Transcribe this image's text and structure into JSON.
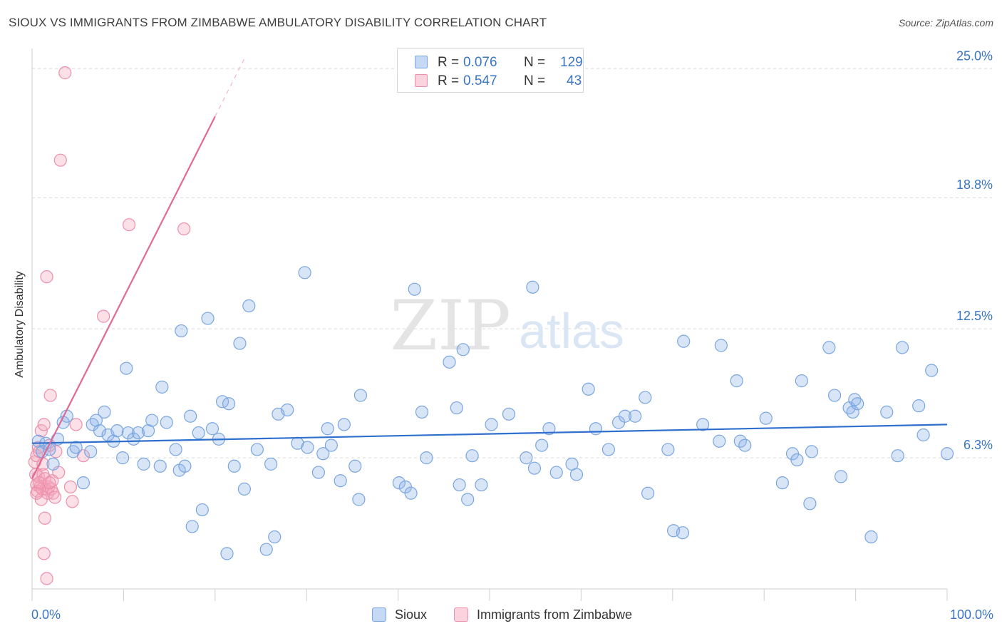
{
  "header": {
    "title": "SIOUX VS IMMIGRANTS FROM ZIMBABWE AMBULATORY DISABILITY CORRELATION CHART",
    "source": "Source: ZipAtlas.com"
  },
  "watermark": {
    "zip": "ZIP",
    "atlas": "atlas"
  },
  "legend": {
    "rows": [
      {
        "r_label": "R =",
        "r_value": "0.076",
        "n_label": "N =",
        "n_value": "129",
        "color": "#8fb5e8"
      },
      {
        "r_label": "R =",
        "r_value": "0.547",
        "n_label": "N =",
        "n_value": "43",
        "color": "#f4a7bd"
      }
    ]
  },
  "bottom_legend": [
    {
      "label": "Sioux",
      "color": "#8fb5e8"
    },
    {
      "label": "Immigrants from Zimbabwe",
      "color": "#f4a7bd"
    }
  ],
  "colors": {
    "blue_fill": "rgba(143,181,232,0.35)",
    "blue_stroke": "#7aa6e0",
    "blue_line": "#2f6fce",
    "pink_fill": "rgba(244,167,189,0.35)",
    "pink_stroke": "#ee8fab",
    "pink_line": "#e06a94",
    "axis_text": "#3a76c4",
    "grid": "#d9d9d9"
  },
  "chart_data": {
    "type": "scatter",
    "title": "SIOUX VS IMMIGRANTS FROM ZIMBABWE AMBULATORY DISABILITY CORRELATION CHART",
    "xlabel": "",
    "ylabel": "Ambulatory Disability",
    "xlim": [
      0,
      100
    ],
    "ylim": [
      0,
      25.9
    ],
    "x_tick_labels": [
      "0.0%",
      "100.0%"
    ],
    "y_ticks": [
      6.3,
      12.5,
      18.8,
      25.0
    ],
    "y_tick_labels": [
      "6.3%",
      "12.5%",
      "18.8%",
      "25.0%"
    ],
    "grid": "horizontal dashed",
    "legend_position": "top-center",
    "series": [
      {
        "name": "Sioux",
        "r": 0.076,
        "n": 129,
        "trend": {
          "x": [
            0,
            100
          ],
          "y": [
            7.0,
            7.9
          ]
        },
        "points": [
          [
            0.7,
            7.1
          ],
          [
            1.1,
            6.6
          ],
          [
            1.5,
            7.0
          ],
          [
            2.3,
            6.0
          ],
          [
            2.8,
            7.2
          ],
          [
            3.4,
            8.0
          ],
          [
            3.8,
            8.3
          ],
          [
            4.5,
            6.6
          ],
          [
            4.8,
            6.8
          ],
          [
            5.6,
            5.1
          ],
          [
            6.4,
            6.6
          ],
          [
            6.6,
            7.9
          ],
          [
            7.0,
            8.1
          ],
          [
            7.4,
            7.6
          ],
          [
            7.9,
            8.5
          ],
          [
            8.3,
            7.4
          ],
          [
            8.9,
            7.1
          ],
          [
            9.3,
            7.6
          ],
          [
            9.9,
            6.3
          ],
          [
            10.3,
            10.6
          ],
          [
            10.5,
            7.5
          ],
          [
            11.1,
            7.2
          ],
          [
            11.6,
            7.5
          ],
          [
            12.2,
            6.0
          ],
          [
            12.7,
            7.6
          ],
          [
            13.1,
            8.1
          ],
          [
            14.0,
            5.9
          ],
          [
            14.2,
            9.7
          ],
          [
            14.7,
            8.0
          ],
          [
            15.7,
            6.7
          ],
          [
            16.1,
            5.7
          ],
          [
            16.3,
            12.4
          ],
          [
            16.7,
            5.9
          ],
          [
            17.3,
            8.3
          ],
          [
            17.5,
            3.0
          ],
          [
            18.2,
            7.5
          ],
          [
            18.6,
            3.8
          ],
          [
            19.2,
            13.0
          ],
          [
            19.7,
            7.7
          ],
          [
            20.4,
            7.2
          ],
          [
            20.8,
            9.0
          ],
          [
            21.3,
            1.7
          ],
          [
            21.5,
            8.9
          ],
          [
            22.1,
            5.9
          ],
          [
            22.7,
            11.8
          ],
          [
            23.2,
            4.8
          ],
          [
            23.7,
            13.6
          ],
          [
            24.6,
            6.7
          ],
          [
            25.6,
            1.9
          ],
          [
            26.1,
            6.0
          ],
          [
            26.5,
            2.5
          ],
          [
            26.9,
            8.4
          ],
          [
            27.9,
            8.6
          ],
          [
            29.0,
            7.0
          ],
          [
            29.8,
            15.2
          ],
          [
            30.1,
            6.8
          ],
          [
            31.3,
            5.6
          ],
          [
            31.8,
            6.5
          ],
          [
            32.3,
            7.7
          ],
          [
            32.7,
            6.9
          ],
          [
            33.7,
            5.2
          ],
          [
            34.1,
            7.9
          ],
          [
            35.3,
            5.9
          ],
          [
            35.7,
            4.3
          ],
          [
            35.9,
            9.3
          ],
          [
            40.1,
            5.1
          ],
          [
            40.8,
            4.9
          ],
          [
            41.4,
            4.6
          ],
          [
            41.8,
            14.4
          ],
          [
            42.6,
            8.5
          ],
          [
            43.1,
            6.3
          ],
          [
            45.6,
            10.9
          ],
          [
            46.4,
            8.7
          ],
          [
            46.7,
            5.0
          ],
          [
            47.1,
            11.5
          ],
          [
            47.6,
            4.3
          ],
          [
            48.1,
            6.4
          ],
          [
            49.1,
            5.0
          ],
          [
            50.2,
            7.9
          ],
          [
            52.1,
            8.4
          ],
          [
            54.0,
            6.3
          ],
          [
            54.7,
            14.5
          ],
          [
            54.9,
            5.8
          ],
          [
            55.7,
            6.9
          ],
          [
            56.5,
            7.7
          ],
          [
            57.3,
            5.6
          ],
          [
            59.0,
            6.0
          ],
          [
            59.5,
            5.5
          ],
          [
            60.8,
            9.6
          ],
          [
            61.6,
            7.7
          ],
          [
            63.0,
            6.7
          ],
          [
            64.1,
            8.0
          ],
          [
            64.8,
            8.3
          ],
          [
            65.9,
            8.3
          ],
          [
            67.0,
            9.2
          ],
          [
            67.3,
            4.6
          ],
          [
            69.5,
            6.7
          ],
          [
            70.1,
            2.8
          ],
          [
            71.1,
            2.7
          ],
          [
            71.2,
            11.9
          ],
          [
            73.3,
            7.9
          ],
          [
            75.1,
            7.1
          ],
          [
            75.3,
            11.7
          ],
          [
            77.0,
            10.0
          ],
          [
            77.4,
            7.1
          ],
          [
            77.9,
            6.9
          ],
          [
            80.2,
            8.2
          ],
          [
            82.0,
            5.1
          ],
          [
            83.1,
            6.5
          ],
          [
            83.6,
            6.2
          ],
          [
            84.1,
            10.0
          ],
          [
            85.0,
            4.1
          ],
          [
            85.2,
            6.6
          ],
          [
            87.1,
            11.6
          ],
          [
            87.7,
            9.3
          ],
          [
            88.4,
            5.4
          ],
          [
            89.3,
            8.7
          ],
          [
            89.7,
            8.5
          ],
          [
            89.9,
            9.1
          ],
          [
            90.2,
            8.9
          ],
          [
            91.7,
            2.5
          ],
          [
            93.4,
            8.5
          ],
          [
            94.6,
            6.4
          ],
          [
            95.1,
            11.6
          ],
          [
            96.9,
            8.8
          ],
          [
            97.4,
            7.4
          ],
          [
            98.3,
            10.5
          ],
          [
            100.0,
            6.5
          ],
          [
            1.9,
            6.7
          ]
        ]
      },
      {
        "name": "Immigrants from Zimbabwe",
        "r": 0.547,
        "n": 43,
        "trend": {
          "x": [
            0,
            20
          ],
          "y": [
            5.3,
            22.7
          ]
        },
        "points": [
          [
            0.3,
            6.1
          ],
          [
            0.4,
            5.5
          ],
          [
            0.5,
            6.4
          ],
          [
            0.5,
            5.0
          ],
          [
            0.6,
            4.7
          ],
          [
            0.7,
            6.8
          ],
          [
            0.7,
            5.4
          ],
          [
            0.8,
            6.6
          ],
          [
            0.9,
            4.9
          ],
          [
            1.0,
            7.6
          ],
          [
            1.0,
            4.3
          ],
          [
            1.1,
            4.8
          ],
          [
            1.2,
            5.5
          ],
          [
            1.3,
            7.9
          ],
          [
            1.3,
            1.7
          ],
          [
            1.4,
            3.4
          ],
          [
            1.4,
            5.3
          ],
          [
            1.5,
            4.8
          ],
          [
            1.6,
            0.5
          ],
          [
            1.6,
            15.0
          ],
          [
            1.7,
            4.6
          ],
          [
            1.8,
            4.9
          ],
          [
            1.9,
            6.9
          ],
          [
            2.0,
            9.3
          ],
          [
            2.1,
            4.8
          ],
          [
            2.2,
            5.2
          ],
          [
            2.3,
            4.6
          ],
          [
            2.5,
            4.4
          ],
          [
            2.6,
            6.6
          ],
          [
            2.9,
            5.6
          ],
          [
            3.1,
            20.6
          ],
          [
            3.6,
            24.8
          ],
          [
            4.2,
            4.9
          ],
          [
            4.4,
            4.2
          ],
          [
            4.8,
            7.9
          ],
          [
            5.6,
            6.4
          ],
          [
            7.8,
            13.1
          ],
          [
            10.6,
            17.5
          ],
          [
            16.6,
            17.3
          ],
          [
            0.5,
            4.6
          ],
          [
            0.8,
            5.1
          ],
          [
            1.2,
            6.0
          ],
          [
            1.9,
            5.1
          ]
        ]
      }
    ]
  }
}
